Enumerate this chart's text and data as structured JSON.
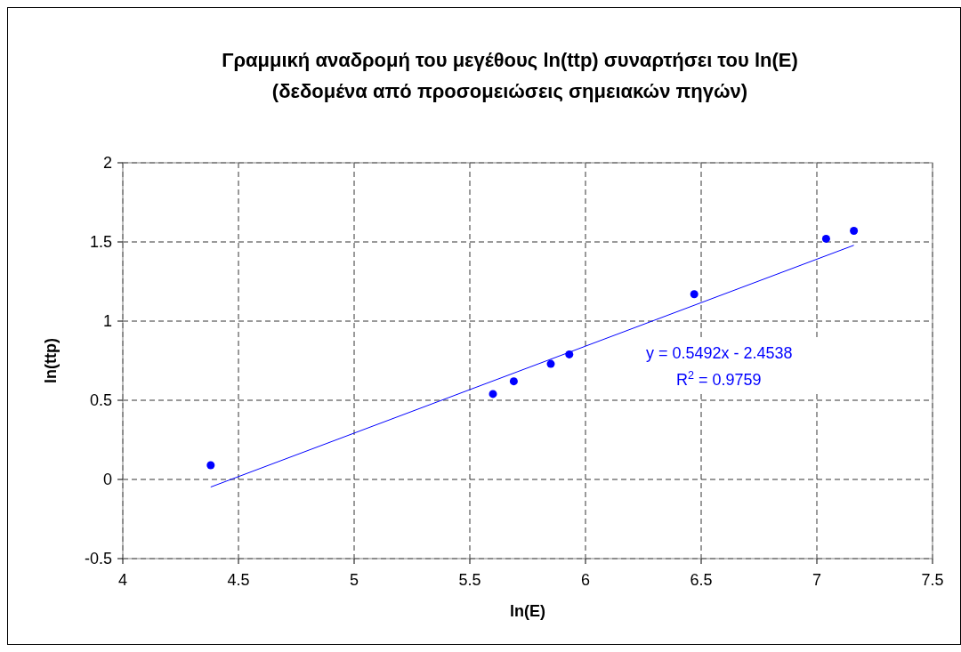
{
  "chart_data": {
    "type": "scatter",
    "title": "Γραμμική αναδρομή του μεγέθους ln(ttp) συναρτήσει του ln(E)\n(δεδομένα από προσομειώσεις σημειακών πηγών)",
    "xlabel": "ln(E)",
    "ylabel": "ln(ttp)",
    "series": [
      {
        "color": "#0000ff",
        "marker": "circle",
        "x": [
          4.38,
          5.6,
          5.69,
          5.85,
          5.93,
          6.47,
          7.04,
          7.16
        ],
        "values": [
          0.09,
          0.54,
          0.62,
          0.73,
          0.79,
          1.17,
          1.52,
          1.57
        ]
      },
      {
        "type": "line",
        "color": "#0000ff",
        "marker": "none",
        "x": [
          4.38,
          7.16
        ],
        "values": [
          -0.048,
          1.479
        ]
      }
    ],
    "annotations": [
      "y = 0.5492x - 2.4538",
      "R$^{2}$ = 0.9759"
    ],
    "xlim": [
      4,
      7.5
    ],
    "xticks": [
      4,
      4.5,
      5,
      5.5,
      6,
      6.5,
      7,
      7.5
    ],
    "ylim": [
      -0.5,
      2
    ],
    "yticks": [
      -0.5,
      0,
      0.5,
      1,
      1.5,
      2
    ],
    "grid": true
  }
}
